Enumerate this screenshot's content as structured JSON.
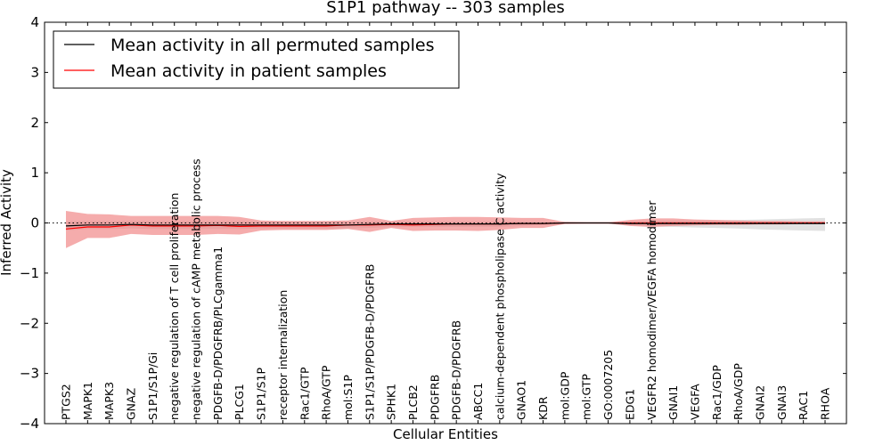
{
  "chart_data": {
    "type": "line",
    "title": "S1P1 pathway -- 303 samples",
    "xlabel": "Cellular Entities",
    "ylabel": "Inferred Activity",
    "ylim": [
      -4,
      4
    ],
    "yticks": [
      4,
      3,
      2,
      1,
      0,
      -1,
      -2,
      -3,
      -4
    ],
    "ytick_labels": [
      "4",
      "3",
      "2",
      "1",
      "0",
      "−1",
      "−2",
      "−3",
      "−4"
    ],
    "grid": false,
    "legend_position": "top-left",
    "categories": [
      "PTGS2",
      "MAPK1",
      "MAPK3",
      "GNAZ",
      "S1P1/S1P/Gi",
      "negative regulation of T cell proliferation",
      "negative regulation of cAMP metabolic process",
      "PDGFB-D/PDGFRB/PLCgamma1",
      "PLCG1",
      "S1P1/S1P",
      "receptor internalization",
      "Rac1/GTP",
      "RhoA/GTP",
      "mol:S1P",
      "S1P1/S1P/PDGFB-D/PDGFRB",
      "SPHK1",
      "PLCB2",
      "PDGFRB",
      "PDGFB-D/PDGFRB",
      "ABCC1",
      "calcium-dependent phospholipase C activity",
      "GNAO1",
      "KDR",
      "mol:GDP",
      "mol:GTP",
      "GO:0007205",
      "EDG1",
      "VEGFR2 homodimer/VEGFA homodimer",
      "GNAI1",
      "VEGFA",
      "Rac1/GDP",
      "RhoA/GDP",
      "GNAI2",
      "GNAI3",
      "RAC1",
      "RHOA"
    ],
    "series": [
      {
        "name": "Mean activity in all permuted samples",
        "color": "#000000",
        "values": [
          -0.06,
          -0.04,
          -0.04,
          -0.03,
          -0.04,
          -0.04,
          -0.04,
          -0.04,
          -0.04,
          -0.04,
          -0.04,
          -0.04,
          -0.04,
          -0.04,
          -0.03,
          -0.02,
          -0.02,
          -0.02,
          -0.02,
          -0.02,
          -0.02,
          -0.01,
          -0.01,
          0.0,
          0.0,
          0.0,
          -0.01,
          -0.01,
          -0.01,
          -0.01,
          -0.01,
          -0.01,
          -0.01,
          -0.01,
          -0.01,
          -0.01
        ],
        "band_upper": [
          0.03,
          0.04,
          0.04,
          0.05,
          0.04,
          0.04,
          0.04,
          0.04,
          0.04,
          0.03,
          0.03,
          0.03,
          0.03,
          0.03,
          0.03,
          0.03,
          0.03,
          0.03,
          0.03,
          0.03,
          0.03,
          0.03,
          0.02,
          0.01,
          0.01,
          0.01,
          0.03,
          0.04,
          0.05,
          0.05,
          0.05,
          0.06,
          0.07,
          0.08,
          0.09,
          0.1
        ],
        "band_lower": [
          -0.15,
          -0.12,
          -0.12,
          -0.11,
          -0.12,
          -0.12,
          -0.12,
          -0.12,
          -0.12,
          -0.11,
          -0.11,
          -0.11,
          -0.11,
          -0.11,
          -0.1,
          -0.08,
          -0.08,
          -0.08,
          -0.08,
          -0.08,
          -0.08,
          -0.06,
          -0.04,
          -0.01,
          -0.01,
          -0.01,
          -0.05,
          -0.07,
          -0.08,
          -0.09,
          -0.1,
          -0.11,
          -0.13,
          -0.14,
          -0.15,
          -0.16
        ]
      },
      {
        "name": "Mean activity in patient samples",
        "color": "#ff0000",
        "values": [
          -0.12,
          -0.08,
          -0.08,
          -0.04,
          -0.06,
          -0.06,
          -0.06,
          -0.05,
          -0.07,
          -0.06,
          -0.06,
          -0.06,
          -0.06,
          -0.04,
          -0.04,
          -0.03,
          -0.04,
          -0.03,
          -0.02,
          -0.02,
          -0.02,
          -0.01,
          -0.01,
          0.0,
          0.0,
          0.0,
          0.0,
          0.0,
          0.0,
          0.0,
          0.0,
          0.0,
          0.0,
          0.0,
          0.0,
          0.0
        ],
        "band_upper": [
          0.24,
          0.18,
          0.17,
          0.14,
          0.14,
          0.14,
          0.14,
          0.14,
          0.12,
          0.05,
          0.04,
          0.04,
          0.04,
          0.05,
          0.12,
          0.04,
          0.1,
          0.11,
          0.12,
          0.12,
          0.11,
          0.1,
          0.1,
          0.02,
          0.01,
          0.01,
          0.06,
          0.09,
          0.09,
          0.07,
          0.06,
          0.05,
          0.04,
          0.04,
          0.03,
          0.03
        ],
        "band_lower": [
          -0.5,
          -0.3,
          -0.3,
          -0.22,
          -0.24,
          -0.24,
          -0.24,
          -0.22,
          -0.23,
          -0.15,
          -0.14,
          -0.14,
          -0.14,
          -0.12,
          -0.18,
          -0.1,
          -0.16,
          -0.15,
          -0.15,
          -0.16,
          -0.14,
          -0.1,
          -0.1,
          -0.02,
          -0.01,
          -0.01,
          -0.06,
          -0.08,
          -0.06,
          -0.05,
          -0.04,
          -0.04,
          -0.03,
          -0.03,
          -0.02,
          -0.02
        ]
      }
    ],
    "reference_line": 0
  }
}
